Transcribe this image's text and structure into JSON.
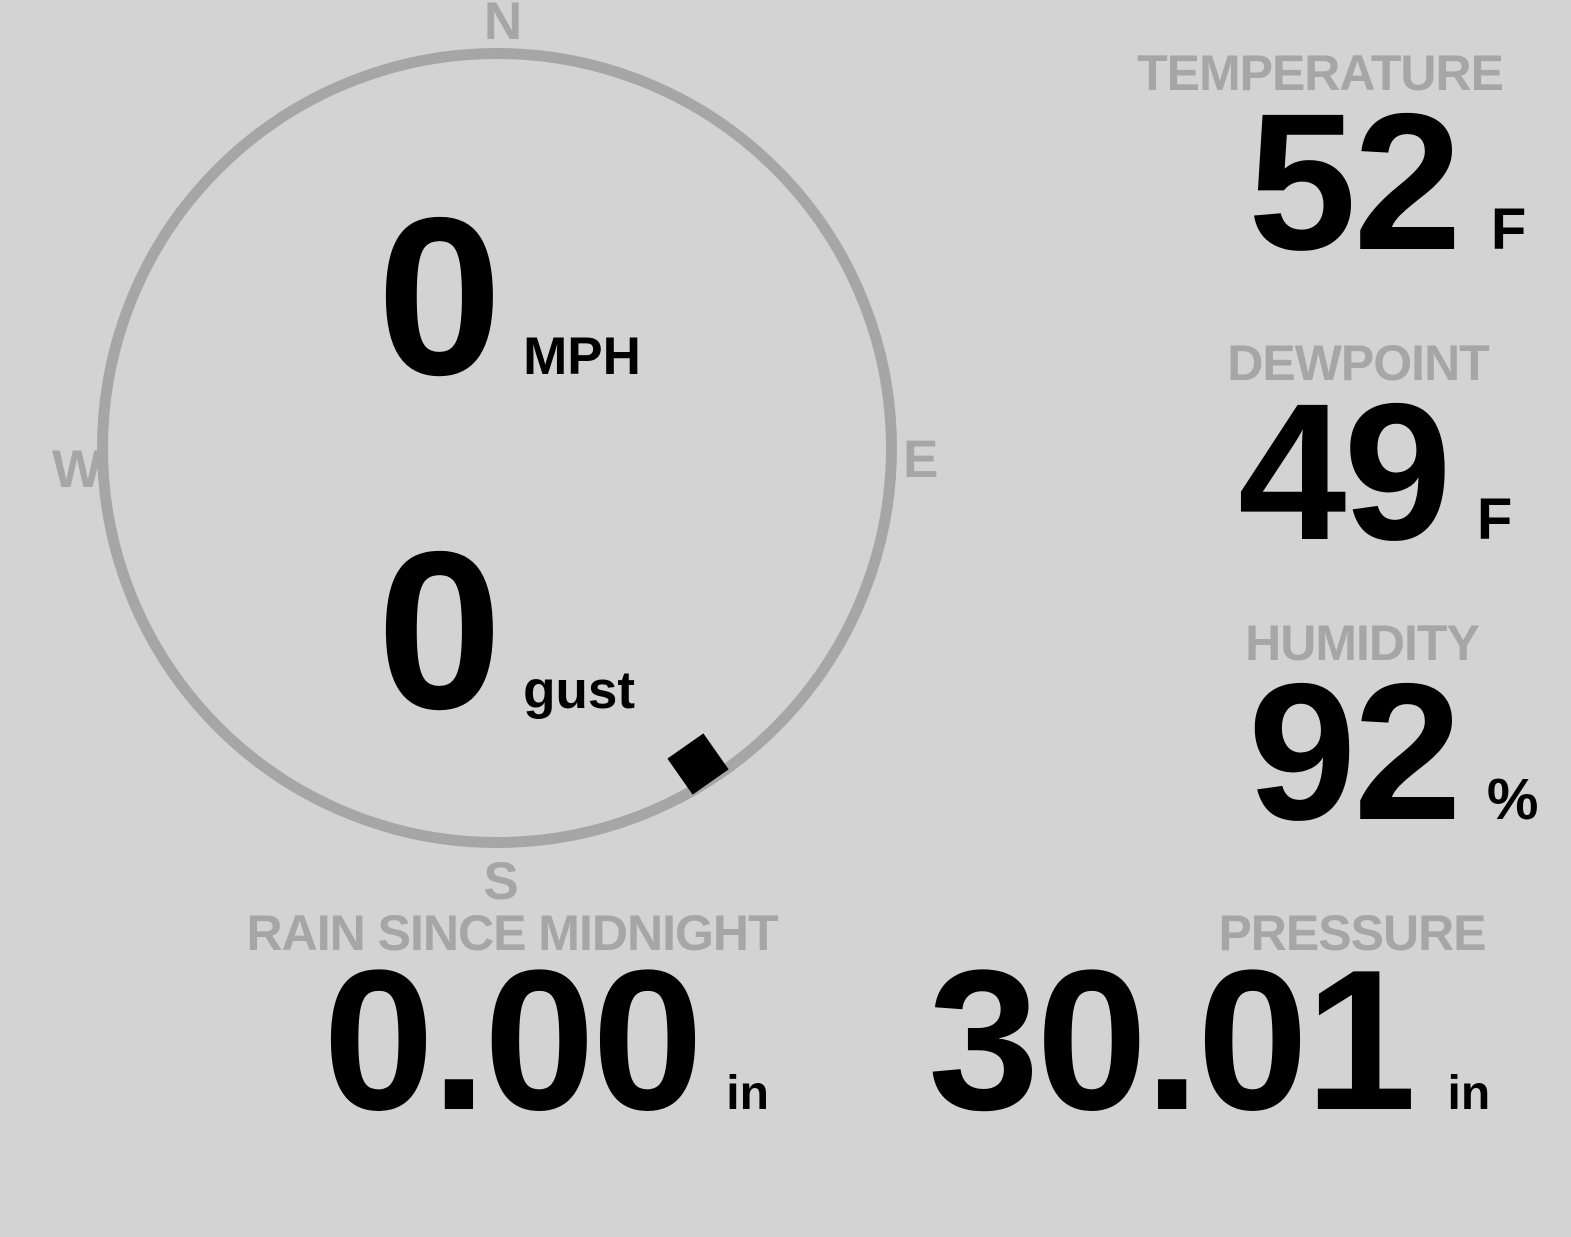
{
  "colors": {
    "background": "#d3d3d3",
    "muted_gray": "#a6a6a6",
    "value_black": "#000000"
  },
  "compass": {
    "cardinals": {
      "north": "N",
      "east": "E",
      "south": "S",
      "west": "W"
    },
    "wind_speed": {
      "value": "0",
      "unit": "MPH"
    },
    "wind_gust": {
      "value": "0",
      "unit": "gust"
    },
    "direction_marker": {
      "bearing_deg": 148
    }
  },
  "metrics": {
    "temperature": {
      "label": "TEMPERATURE",
      "value": "52",
      "unit": "F"
    },
    "dewpoint": {
      "label": "DEWPOINT",
      "value": "49",
      "unit": "F"
    },
    "humidity": {
      "label": "HUMIDITY",
      "value": "92",
      "unit": "%"
    },
    "rain": {
      "label": "RAIN SINCE MIDNIGHT",
      "value": "0.00",
      "unit": "in"
    },
    "pressure": {
      "label": "PRESSURE",
      "value": "30.01",
      "unit": "in"
    }
  }
}
